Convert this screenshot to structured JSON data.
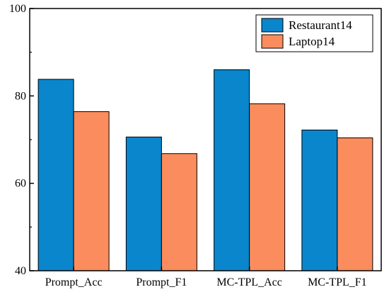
{
  "chart_data": {
    "type": "bar",
    "title": "",
    "xlabel": "",
    "ylabel": "",
    "categories": [
      "Prompt_Acc",
      "Prompt_F1",
      "MC-TPL_Acc",
      "MC-TPL_F1"
    ],
    "series": [
      {
        "name": "Restaurant14",
        "color": "#0A86CC",
        "values": [
          83.8,
          70.6,
          86.0,
          72.2
        ]
      },
      {
        "name": "Laptop14",
        "color": "#FA8C5E",
        "values": [
          76.4,
          66.8,
          78.2,
          70.4
        ]
      }
    ],
    "ylim": [
      40,
      100
    ],
    "yticks": [
      40,
      60,
      80,
      100
    ],
    "grid": false,
    "legend": {
      "position": "top-right"
    }
  }
}
